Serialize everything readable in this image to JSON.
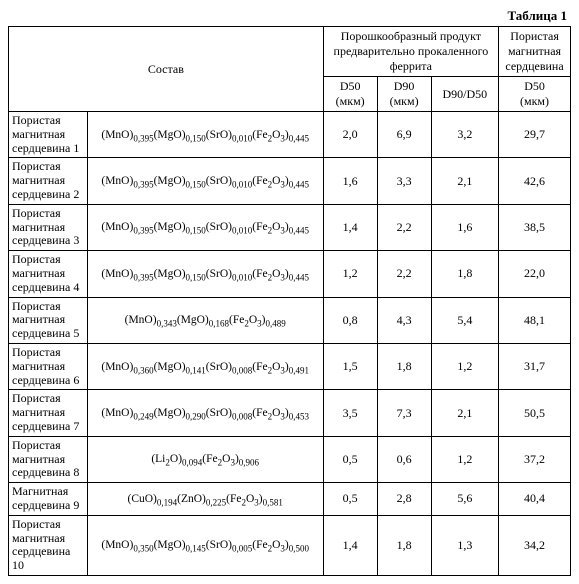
{
  "table_title": "Таблица 1",
  "headers": {
    "composition": "Состав",
    "powder_group": "Порошкообразный продукт предварительно прокаленного феррита",
    "pmc_group": "Пористая магнитная сердцевина",
    "d50": "D50",
    "d50_unit": "(мкм)",
    "d90": "D90",
    "d90_unit": "(мкм)",
    "ratio": "D90/D50",
    "pmc_d50": "D50",
    "pmc_d50_unit": "(мкм)"
  },
  "rows": [
    {
      "label": "Пористая магнитная сердцевина 1",
      "formula_html": "(MnO)<sub>0,395</sub>(MgO)<sub>0,150</sub>(SrO)<sub>0,010</sub>(Fe<sub>2</sub>O<sub>3</sub>)<sub>0,445</sub>",
      "d50": "2,0",
      "d90": "6,9",
      "ratio": "3,2",
      "pmc": "29,7"
    },
    {
      "label": "Пористая магнитная сердцевина 2",
      "formula_html": "(MnO)<sub>0,395</sub>(MgO)<sub>0,150</sub>(SrO)<sub>0,010</sub>(Fe<sub>2</sub>O<sub>3</sub>)<sub>0,445</sub>",
      "d50": "1,6",
      "d90": "3,3",
      "ratio": "2,1",
      "pmc": "42,6"
    },
    {
      "label": "Пористая магнитная сердцевина 3",
      "formula_html": "(MnO)<sub>0,395</sub>(MgO)<sub>0,150</sub>(SrO)<sub>0,010</sub>(Fe<sub>2</sub>O<sub>3</sub>)<sub>0,445</sub>",
      "d50": "1,4",
      "d90": "2,2",
      "ratio": "1,6",
      "pmc": "38,5"
    },
    {
      "label": "Пористая магнитная сердцевина 4",
      "formula_html": "(MnO)<sub>0,395</sub>(MgO)<sub>0,150</sub>(SrO)<sub>0,010</sub>(Fe<sub>2</sub>O<sub>3</sub>)<sub>0,445</sub>",
      "d50": "1,2",
      "d90": "2,2",
      "ratio": "1,8",
      "pmc": "22,0"
    },
    {
      "label": "Пористая магнитная сердцевина 5",
      "formula_html": "(MnO)<sub>0,343</sub>(MgO)<sub>0,168</sub>(Fe<sub>2</sub>O<sub>3</sub>)<sub>0,489</sub>",
      "d50": "0,8",
      "d90": "4,3",
      "ratio": "5,4",
      "pmc": "48,1"
    },
    {
      "label": "Пористая магнитная сердцевина 6",
      "formula_html": "(MnO)<sub>0,360</sub>(MgO)<sub>0,141</sub>(SrO)<sub>0,008</sub>(Fe<sub>2</sub>O<sub>3</sub>)<sub>0,491</sub>",
      "d50": "1,5",
      "d90": "1,8",
      "ratio": "1,2",
      "pmc": "31,7"
    },
    {
      "label": "Пористая магнитная сердцевина 7",
      "formula_html": "(MnO)<sub>0,249</sub>(MgO)<sub>0,290</sub>(SrO)<sub>0,008</sub>(Fe<sub>2</sub>O<sub>3</sub>)<sub>0,453</sub>",
      "d50": "3,5",
      "d90": "7,3",
      "ratio": "2,1",
      "pmc": "50,5"
    },
    {
      "label": "Пористая магнитная сердцевина 8",
      "formula_html": "(Li<sub>2</sub>O)<sub>0,094</sub>(Fe<sub>2</sub>O<sub>3</sub>)<sub>0,906</sub>",
      "d50": "0,5",
      "d90": "0,6",
      "ratio": "1,2",
      "pmc": "37,2"
    },
    {
      "label": "Магнитная сердцевина 9",
      "formula_html": "(CuO)<sub>0,194</sub>(ZnO)<sub>0,225</sub>(Fe<sub>2</sub>O<sub>3</sub>)<sub>0,581</sub>",
      "d50": "0,5",
      "d90": "2,8",
      "ratio": "5,6",
      "pmc": "40,4"
    },
    {
      "label": "Пористая магнитная сердцевина 10",
      "formula_html": "(MnO)<sub>0,350</sub>(MgO)<sub>0,145</sub>(SrO)<sub>0,005</sub>(Fe<sub>2</sub>O<sub>3</sub>)<sub>0,500</sub>",
      "d50": "1,4",
      "d90": "1,8",
      "ratio": "1,3",
      "pmc": "34,2"
    }
  ]
}
